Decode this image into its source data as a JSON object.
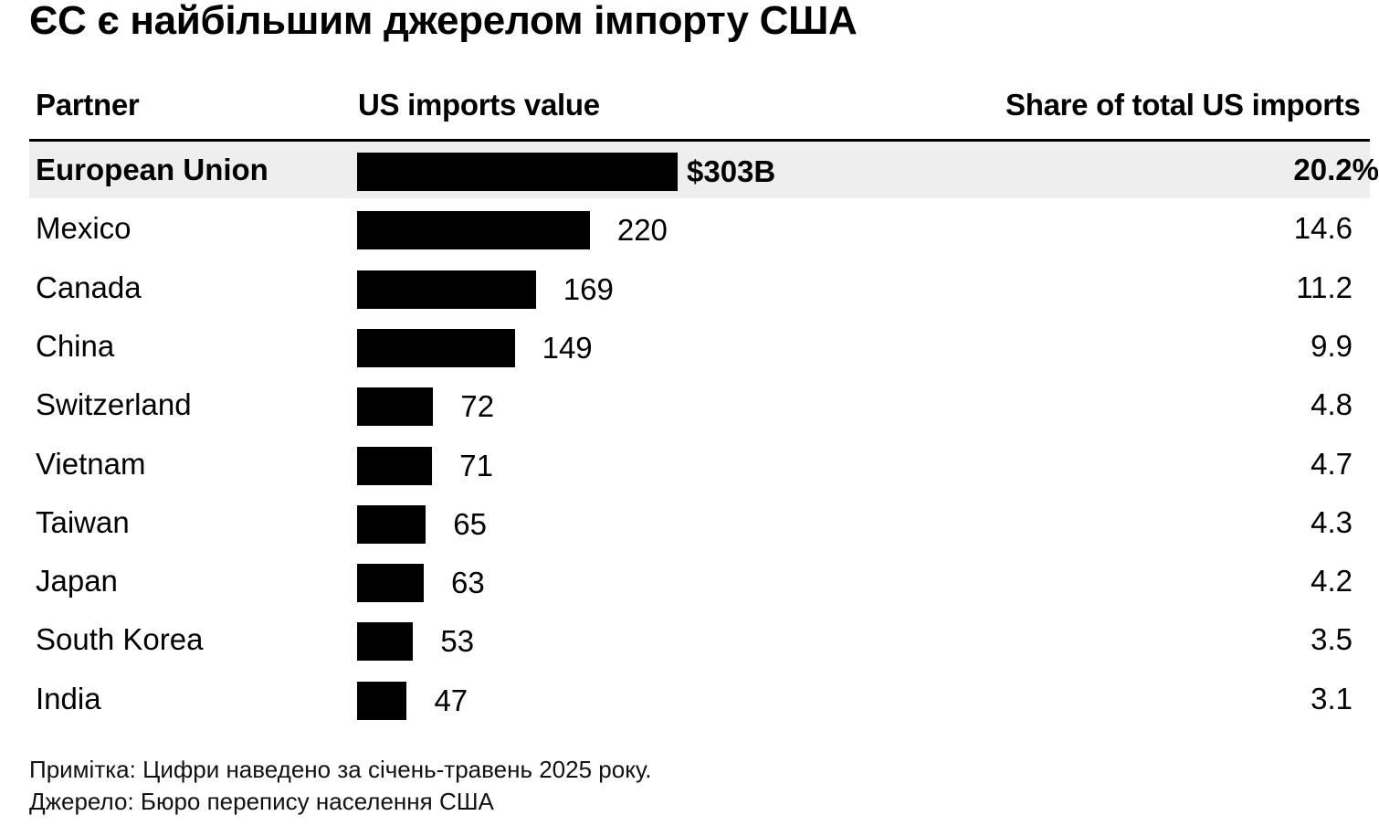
{
  "title": "ЄС є найбільшим джерелом імпорту США",
  "headers": {
    "partner": "Partner",
    "value": "US imports value",
    "share": "Share of total US imports"
  },
  "colors": {
    "bar": "#000000",
    "highlight_row": "#eeeeee"
  },
  "chart_data": {
    "type": "bar",
    "orientation": "horizontal",
    "categories": [
      "European Union",
      "Mexico",
      "Canada",
      "China",
      "Switzerland",
      "Vietnam",
      "Taiwan",
      "Japan",
      "South Korea",
      "India"
    ],
    "values": [
      303,
      220,
      169,
      149,
      72,
      71,
      65,
      63,
      53,
      47
    ],
    "value_labels": [
      "$303B",
      "220",
      "169",
      "149",
      "72",
      "71",
      "65",
      "63",
      "53",
      "47"
    ],
    "share_labels": [
      "20.2%",
      "14.6",
      "11.2",
      "9.9",
      "4.8",
      "4.7",
      "4.3",
      "4.2",
      "3.5",
      "3.1"
    ],
    "highlight": "European Union",
    "xlim": [
      0,
      303
    ]
  },
  "notes": {
    "note": "Примітка: Цифри наведено за січень-травень 2025 року.",
    "source": "Джерело: Бюро перепису населення США"
  }
}
